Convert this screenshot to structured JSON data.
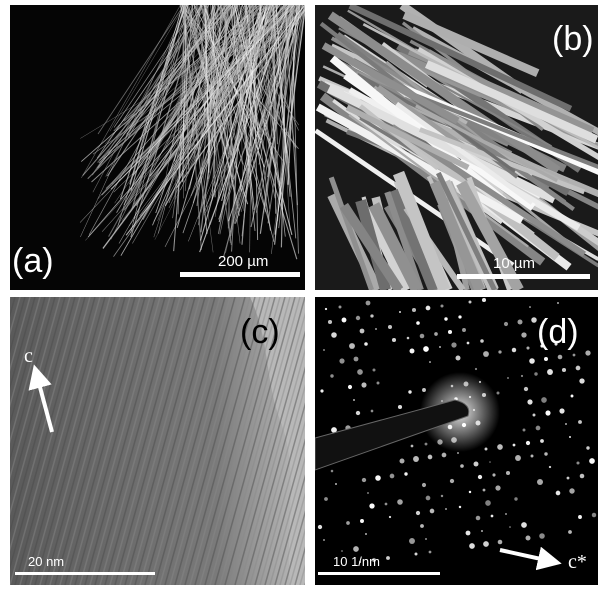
{
  "panels": [
    {
      "label": "(a)",
      "scale_bar": "200 µm"
    },
    {
      "label": "(b)",
      "scale_bar": "10 µm"
    },
    {
      "label": "(c)",
      "scale_bar": "20 nm",
      "axis_label": "c"
    },
    {
      "label": "(d)",
      "scale_bar": "10 1/nm",
      "axis_label": "c*"
    }
  ]
}
